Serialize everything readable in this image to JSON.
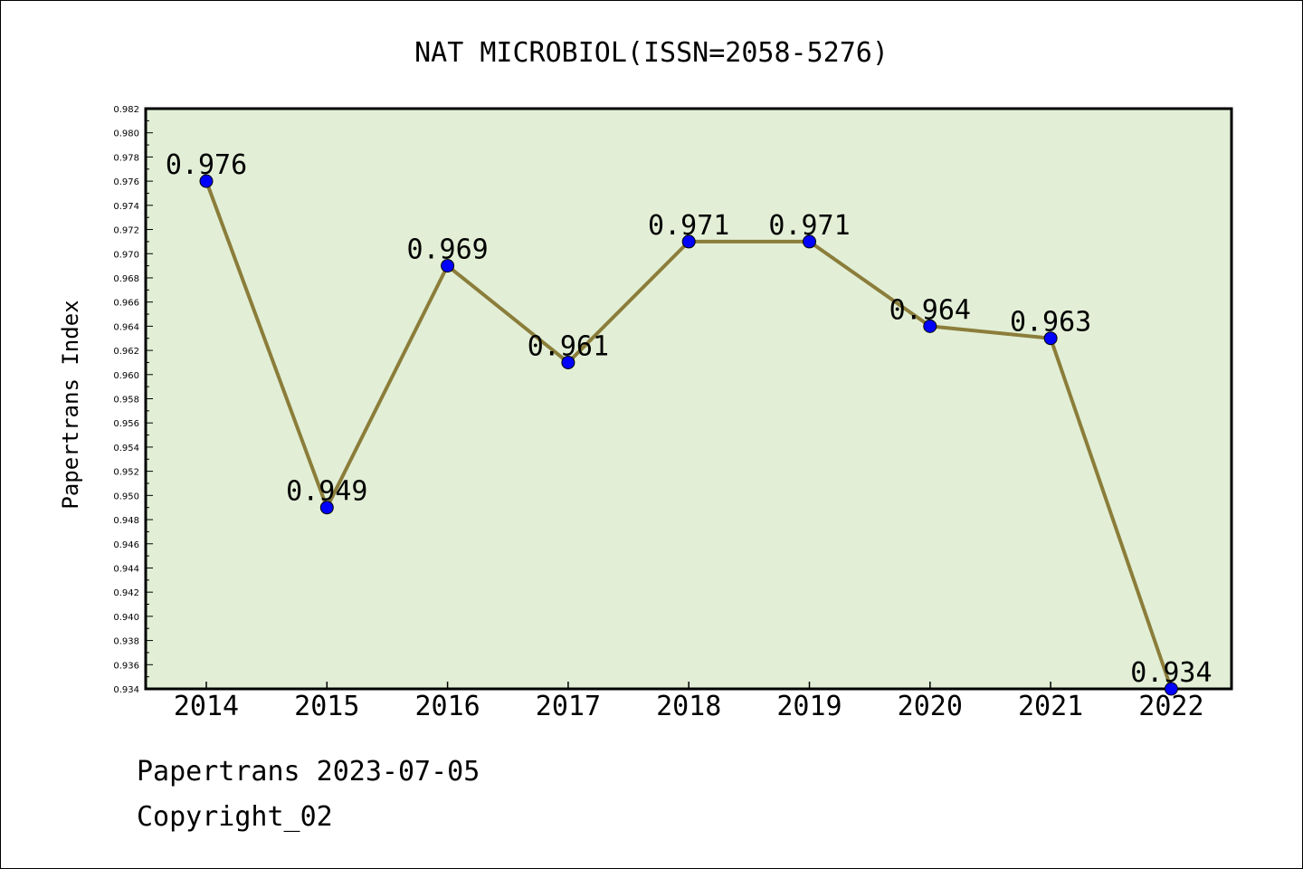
{
  "chart_data": {
    "type": "line",
    "title": "NAT MICROBIOL(ISSN=2058-5276)",
    "ylabel": "Papertrans Index",
    "xlabel": "",
    "categories": [
      "2014",
      "2015",
      "2016",
      "2017",
      "2018",
      "2019",
      "2020",
      "2021",
      "2022"
    ],
    "values": [
      0.976,
      0.949,
      0.969,
      0.961,
      0.971,
      0.971,
      0.964,
      0.963,
      0.934
    ],
    "data_labels": [
      "0.976",
      "0.949",
      "0.969",
      "0.961",
      "0.971",
      "0.971",
      "0.964",
      "0.963",
      "0.934"
    ],
    "ylim": [
      0.934,
      0.982
    ],
    "ytick_step": 0.002,
    "grid": false,
    "legend": "none",
    "colors": {
      "line": "#8B7D3A",
      "marker": "#0000FF",
      "plot_bg": "#E2EFD6"
    }
  },
  "footer": {
    "line1": "Papertrans 2023-07-05",
    "line2": "Copyright_02"
  }
}
